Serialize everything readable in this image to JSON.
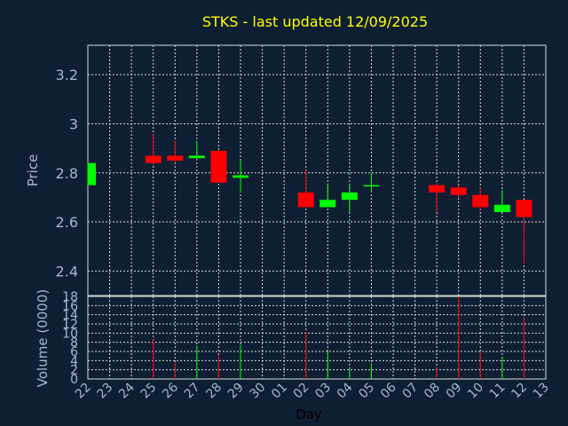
{
  "chart_data": {
    "type": "candlestick",
    "title": "STKS - last updated 12/09/2025",
    "xlabel": "Day",
    "price_ylabel": "Price",
    "volume_ylabel": "Volume (0000)",
    "x_ticks": [
      "22",
      "23",
      "24",
      "25",
      "26",
      "27",
      "28",
      "29",
      "30",
      "01",
      "02",
      "03",
      "04",
      "05",
      "06",
      "07",
      "08",
      "09",
      "10",
      "11",
      "12",
      "13"
    ],
    "price_ticks": [
      "2.4",
      "2.6",
      "2.8",
      "3",
      "3.2"
    ],
    "price_ylim": [
      2.3,
      3.32
    ],
    "volume_ticks": [
      "0",
      "2",
      "4",
      "6",
      "8",
      "10",
      "12",
      "14",
      "16",
      "18"
    ],
    "volume_ylim": [
      0,
      18
    ],
    "grid": true,
    "up_color": "#00ff00",
    "down_color": "#ff0000",
    "candles": [
      {
        "day": "22",
        "open": 2.75,
        "high": 2.84,
        "low": 2.75,
        "close": 2.84,
        "volume": 0
      },
      {
        "day": "25",
        "open": 2.87,
        "high": 2.96,
        "low": 2.83,
        "close": 2.84,
        "volume": 8.6
      },
      {
        "day": "26",
        "open": 2.87,
        "high": 2.93,
        "low": 2.84,
        "close": 2.85,
        "volume": 3.6
      },
      {
        "day": "27",
        "open": 2.86,
        "high": 2.93,
        "low": 2.85,
        "close": 2.87,
        "volume": 7.2
      },
      {
        "day": "28",
        "open": 2.89,
        "high": 2.89,
        "low": 2.76,
        "close": 2.76,
        "volume": 5.2
      },
      {
        "day": "29",
        "open": 2.78,
        "high": 2.85,
        "low": 2.72,
        "close": 2.79,
        "volume": 7.4
      },
      {
        "day": "02",
        "open": 2.72,
        "high": 2.81,
        "low": 2.66,
        "close": 2.66,
        "volume": 10.2
      },
      {
        "day": "03",
        "open": 2.66,
        "high": 2.75,
        "low": 2.66,
        "close": 2.69,
        "volume": 6.0
      },
      {
        "day": "04",
        "open": 2.69,
        "high": 2.75,
        "low": 2.64,
        "close": 2.72,
        "volume": 2.2
      },
      {
        "day": "05",
        "open": 2.75,
        "high": 2.8,
        "low": 2.72,
        "close": 2.75,
        "volume": 3.4
      },
      {
        "day": "08",
        "open": 2.75,
        "high": 2.76,
        "low": 2.64,
        "close": 2.72,
        "volume": 2.6
      },
      {
        "day": "09",
        "open": 2.74,
        "high": 2.75,
        "low": 2.7,
        "close": 2.71,
        "volume": 18
      },
      {
        "day": "10",
        "open": 2.71,
        "high": 2.74,
        "low": 2.65,
        "close": 2.66,
        "volume": 5.8
      },
      {
        "day": "11",
        "open": 2.64,
        "high": 2.73,
        "low": 2.64,
        "close": 2.67,
        "volume": 4.8
      },
      {
        "day": "12",
        "open": 2.69,
        "high": 2.69,
        "low": 2.43,
        "close": 2.62,
        "volume": 13.2
      }
    ]
  }
}
